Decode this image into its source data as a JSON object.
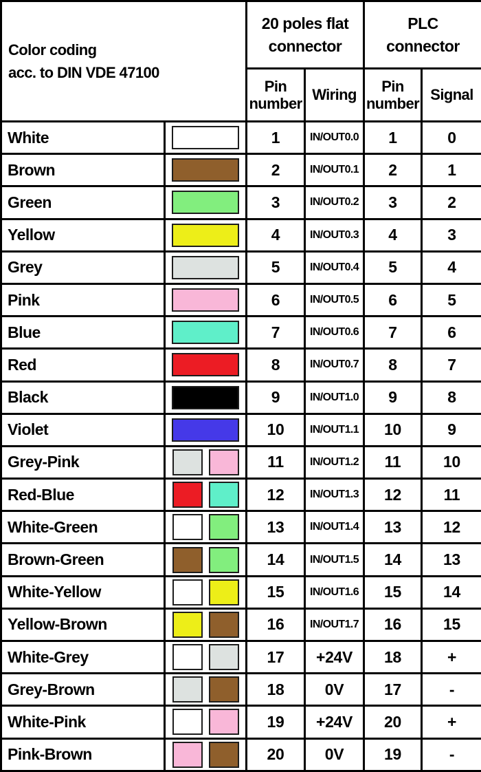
{
  "header": {
    "title_lines": [
      "Color coding",
      "acc. to DIN VDE 47100"
    ],
    "flat_connector_lines": [
      "20 poles flat",
      "connector"
    ],
    "plc_connector_lines": [
      "PLC",
      "connector"
    ],
    "sub_headers": {
      "flat_pin": "Pin number",
      "wiring": "Wiring",
      "plc_pin": "Pin number",
      "signal": "Signal"
    }
  },
  "palette": {
    "white": "#FFFFFF",
    "brown": "#8F5F2C",
    "green": "#82EE7E",
    "yellow": "#EDEE18",
    "grey": "#DDE2E0",
    "pink": "#F9B7D8",
    "blue": "#5FEFC9",
    "red": "#EC1C24",
    "black": "#000000",
    "violet": "#4539E8",
    "swatch_border": "#1c1c1c",
    "grid_border": "#000000"
  },
  "rows": [
    {
      "name": "White",
      "colors": [
        "white"
      ],
      "pin": "1",
      "wiring": "IN/OUT0.0",
      "plc_pin": "1",
      "signal": "0"
    },
    {
      "name": "Brown",
      "colors": [
        "brown"
      ],
      "pin": "2",
      "wiring": "IN/OUT0.1",
      "plc_pin": "2",
      "signal": "1"
    },
    {
      "name": "Green",
      "colors": [
        "green"
      ],
      "pin": "3",
      "wiring": "IN/OUT0.2",
      "plc_pin": "3",
      "signal": "2"
    },
    {
      "name": "Yellow",
      "colors": [
        "yellow"
      ],
      "pin": "4",
      "wiring": "IN/OUT0.3",
      "plc_pin": "4",
      "signal": "3"
    },
    {
      "name": "Grey",
      "colors": [
        "grey"
      ],
      "pin": "5",
      "wiring": "IN/OUT0.4",
      "plc_pin": "5",
      "signal": "4"
    },
    {
      "name": "Pink",
      "colors": [
        "pink"
      ],
      "pin": "6",
      "wiring": "IN/OUT0.5",
      "plc_pin": "6",
      "signal": "5"
    },
    {
      "name": "Blue",
      "colors": [
        "blue"
      ],
      "pin": "7",
      "wiring": "IN/OUT0.6",
      "plc_pin": "7",
      "signal": "6"
    },
    {
      "name": "Red",
      "colors": [
        "red"
      ],
      "pin": "8",
      "wiring": "IN/OUT0.7",
      "plc_pin": "8",
      "signal": "7"
    },
    {
      "name": "Black",
      "colors": [
        "black"
      ],
      "pin": "9",
      "wiring": "IN/OUT1.0",
      "plc_pin": "9",
      "signal": "8"
    },
    {
      "name": "Violet",
      "colors": [
        "violet"
      ],
      "pin": "10",
      "wiring": "IN/OUT1.1",
      "plc_pin": "10",
      "signal": "9"
    },
    {
      "name": "Grey-Pink",
      "colors": [
        "grey",
        "pink"
      ],
      "pin": "11",
      "wiring": "IN/OUT1.2",
      "plc_pin": "11",
      "signal": "10"
    },
    {
      "name": "Red-Blue",
      "colors": [
        "red",
        "blue"
      ],
      "pin": "12",
      "wiring": "IN/OUT1.3",
      "plc_pin": "12",
      "signal": "11"
    },
    {
      "name": "White-Green",
      "colors": [
        "white",
        "green"
      ],
      "pin": "13",
      "wiring": "IN/OUT1.4",
      "plc_pin": "13",
      "signal": "12"
    },
    {
      "name": "Brown-Green",
      "colors": [
        "brown",
        "green"
      ],
      "pin": "14",
      "wiring": "IN/OUT1.5",
      "plc_pin": "14",
      "signal": "13"
    },
    {
      "name": "White-Yellow",
      "colors": [
        "white",
        "yellow"
      ],
      "pin": "15",
      "wiring": "IN/OUT1.6",
      "plc_pin": "15",
      "signal": "14"
    },
    {
      "name": "Yellow-Brown",
      "colors": [
        "yellow",
        "brown"
      ],
      "pin": "16",
      "wiring": "IN/OUT1.7",
      "plc_pin": "16",
      "signal": "15"
    },
    {
      "name": "White-Grey",
      "colors": [
        "white",
        "grey"
      ],
      "pin": "17",
      "wiring": "+24V",
      "plc_pin": "18",
      "signal": "+"
    },
    {
      "name": "Grey-Brown",
      "colors": [
        "grey",
        "brown"
      ],
      "pin": "18",
      "wiring": "0V",
      "plc_pin": "17",
      "signal": "-"
    },
    {
      "name": "White-Pink",
      "colors": [
        "white",
        "pink"
      ],
      "pin": "19",
      "wiring": "+24V",
      "plc_pin": "20",
      "signal": "+"
    },
    {
      "name": "Pink-Brown",
      "colors": [
        "pink",
        "brown"
      ],
      "pin": "20",
      "wiring": "0V",
      "plc_pin": "19",
      "signal": "-"
    }
  ]
}
